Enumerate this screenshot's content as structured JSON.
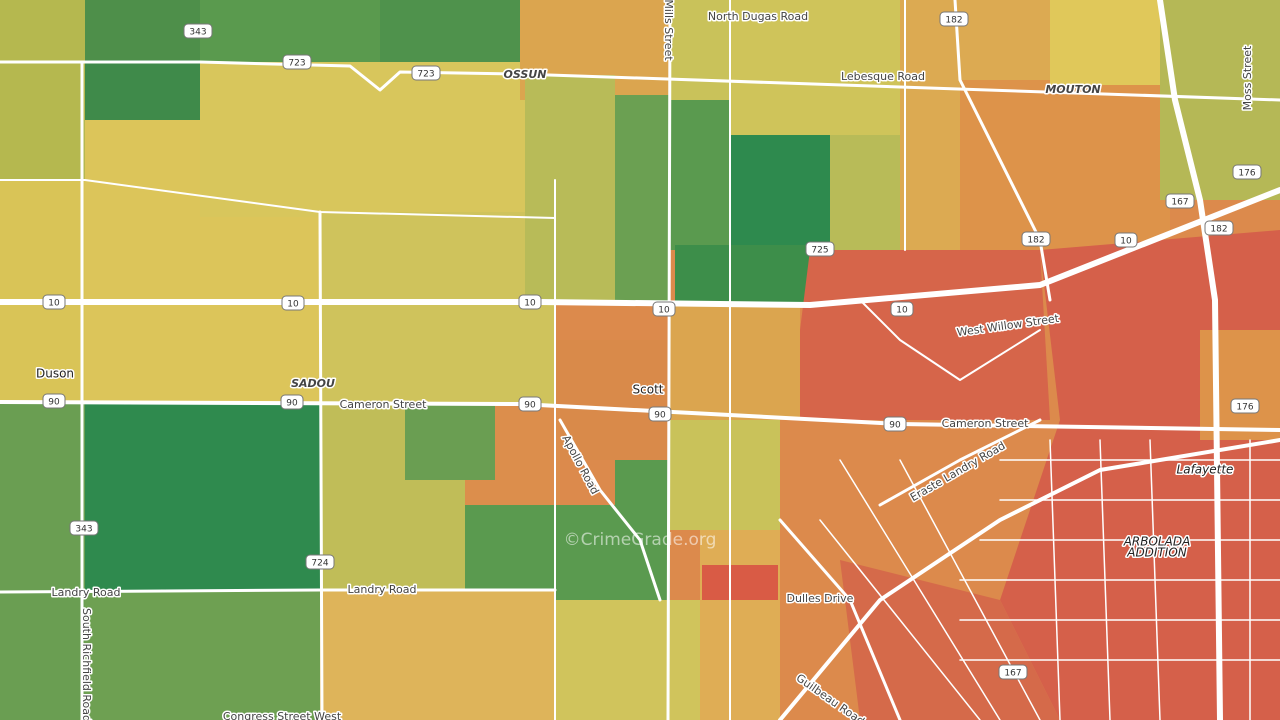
{
  "road_labels": [
    "North Dugas Road",
    "Mills Street",
    "OSSUN",
    "Lebesque Road",
    "MOUTON",
    "Moss Street",
    "West Willow Street",
    "SADOU",
    "Cameron Street",
    "Apollo Road",
    "Cameron Street",
    "Eraste Landry Road",
    "Landry Road",
    "Landry Road",
    "South Richfield Road",
    "Dulles Drive",
    "Guilbeau Road",
    "Congress Street West"
  ],
  "place_labels": [
    "Duson",
    "Scott",
    "Lafayette",
    "ARBOLADA",
    "ADDITION"
  ],
  "shields": [
    "343",
    "723",
    "723",
    "182",
    "10",
    "10",
    "10",
    "10",
    "10",
    "725",
    "182",
    "10",
    "167",
    "182",
    "176",
    "90",
    "90",
    "90",
    "90",
    "90",
    "176",
    "343",
    "724",
    "167"
  ],
  "watermark": "©CrimeGrade.org"
}
